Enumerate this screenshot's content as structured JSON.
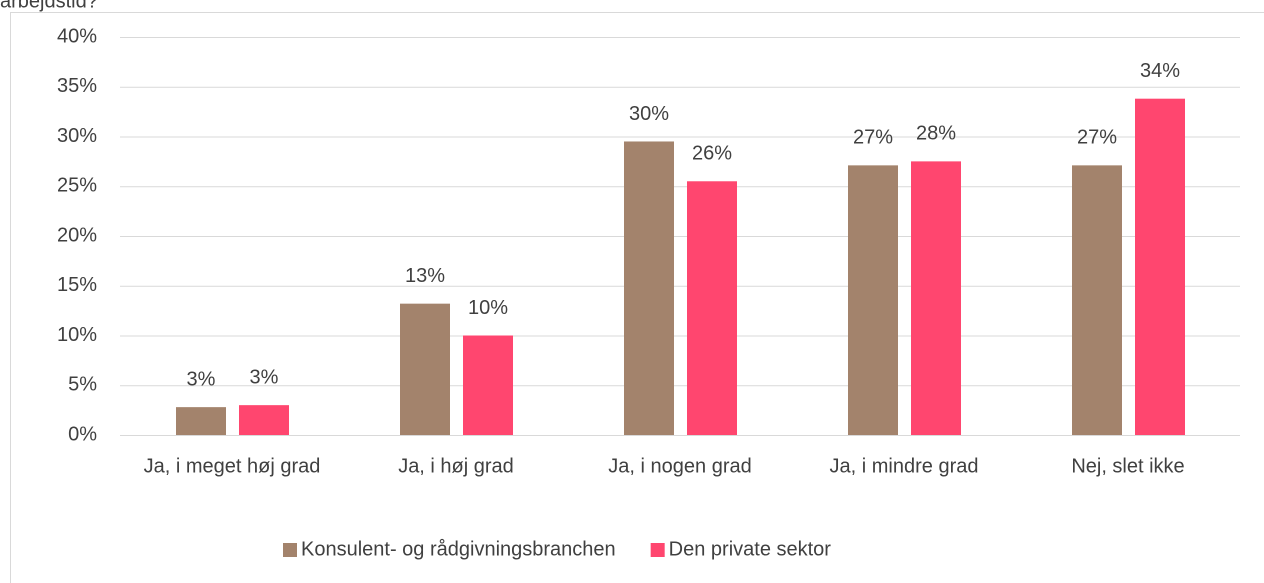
{
  "chart_data": {
    "type": "bar",
    "title": "arbejdstid?",
    "categories": [
      "Ja, i meget høj grad",
      "Ja, i høj grad",
      "Ja, i nogen grad",
      "Ja, i mindre grad",
      "Nej, slet ikke"
    ],
    "series": [
      {
        "name": "Konsulent- og rådgivningsbranchen",
        "color": "#a3836c",
        "values": [
          2.8,
          13.2,
          29.5,
          27.1,
          27.1
        ],
        "value_labels": [
          "3%",
          "13%",
          "30%",
          "27%",
          "27%"
        ]
      },
      {
        "name": "Den private sektor",
        "color": "#ff466f",
        "values": [
          3.0,
          10,
          25.5,
          27.5,
          33.8
        ],
        "value_labels": [
          "3%",
          "10%",
          "26%",
          "28%",
          "34%"
        ]
      }
    ],
    "ylim": [
      0,
      40
    ],
    "yticks": [
      {
        "value": 0,
        "label": "0%"
      },
      {
        "value": 5,
        "label": "5%"
      },
      {
        "value": 10,
        "label": "10%"
      },
      {
        "value": 15,
        "label": "15%"
      },
      {
        "value": 20,
        "label": "20%"
      },
      {
        "value": 25,
        "label": "25%"
      },
      {
        "value": 30,
        "label": "30%"
      },
      {
        "value": 35,
        "label": "35%"
      },
      {
        "value": 40,
        "label": "40%"
      }
    ],
    "grid": true,
    "legend": "bottom"
  }
}
